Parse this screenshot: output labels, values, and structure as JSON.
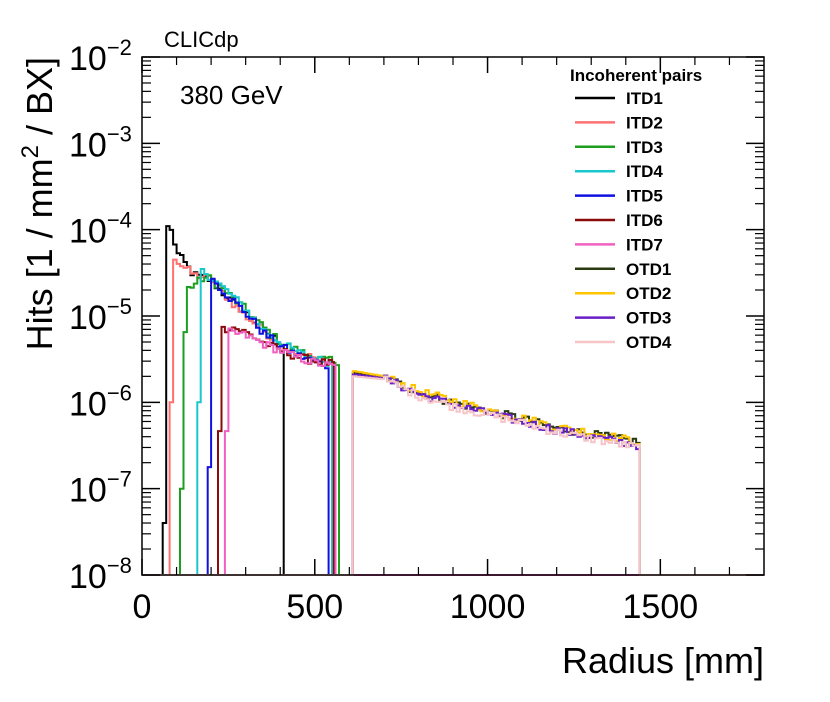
{
  "chart_data": {
    "type": "line",
    "subtype": "step-histogram",
    "title": "",
    "xlabel": "Radius [mm]",
    "ylabel": {
      "pre": "Hits [1 / mm",
      "sup": "2",
      "post": " / BX]"
    },
    "xlim": [
      0,
      1800
    ],
    "ylim": [
      1e-08,
      0.01
    ],
    "yscale": "log",
    "x_ticks": [
      0,
      500,
      1000,
      1500
    ],
    "x_tick_labels": [
      "0",
      "500",
      "1000",
      "1500"
    ],
    "y_ticks": [
      1e-08,
      1e-07,
      1e-06,
      1e-05,
      0.0001,
      0.001,
      0.01
    ],
    "y_tick_labels": [
      {
        "base": "10",
        "exp": "−8"
      },
      {
        "base": "10",
        "exp": "−7"
      },
      {
        "base": "10",
        "exp": "−6"
      },
      {
        "base": "10",
        "exp": "−5"
      },
      {
        "base": "10",
        "exp": "−4"
      },
      {
        "base": "10",
        "exp": "−3"
      },
      {
        "base": "10",
        "exp": "−2"
      }
    ],
    "annotations": {
      "collaboration": "CLICdp",
      "energy": "380 GeV"
    },
    "legend": {
      "title": "Incoherent pairs",
      "placement": "top-right"
    },
    "series": [
      {
        "name": "ITD1",
        "color": "#000000",
        "r_min": 60,
        "r_max": 410,
        "points": [
          [
            60,
            1e-08
          ],
          [
            70,
            1.6e-07
          ],
          [
            75,
            0.00011
          ],
          [
            90,
            9e-05
          ],
          [
            100,
            5.5e-05
          ],
          [
            150,
            3e-05
          ],
          [
            200,
            2.6e-05
          ],
          [
            250,
            1.6e-05
          ],
          [
            300,
            1.1e-05
          ],
          [
            350,
            7e-06
          ],
          [
            400,
            5e-06
          ]
        ]
      },
      {
        "name": "ITD2",
        "color": "#ff7070",
        "r_min": 80,
        "r_max": 550,
        "points": [
          [
            80,
            1e-08
          ],
          [
            85,
            1e-06
          ],
          [
            95,
            4.5e-05
          ],
          [
            150,
            3e-05
          ],
          [
            200,
            2.7e-05
          ],
          [
            250,
            1.6e-05
          ],
          [
            300,
            1e-05
          ],
          [
            350,
            7e-06
          ],
          [
            400,
            4.5e-06
          ],
          [
            450,
            3.8e-06
          ],
          [
            500,
            3.2e-06
          ],
          [
            545,
            2.8e-06
          ]
        ]
      },
      {
        "name": "ITD3",
        "color": "#1e9e1e",
        "r_min": 110,
        "r_max": 570,
        "points": [
          [
            110,
            1e-08
          ],
          [
            120,
            1e-06
          ],
          [
            128,
            2e-05
          ],
          [
            150,
            2.3e-05
          ],
          [
            180,
            2.8e-05
          ],
          [
            200,
            2.7e-05
          ],
          [
            250,
            1.8e-05
          ],
          [
            300,
            1.2e-05
          ],
          [
            350,
            7.5e-06
          ],
          [
            400,
            5e-06
          ],
          [
            450,
            4e-06
          ],
          [
            500,
            3.3e-06
          ],
          [
            550,
            3e-06
          ],
          [
            565,
            2.5e-06
          ]
        ]
      },
      {
        "name": "ITD4",
        "color": "#18c8cc",
        "r_min": 160,
        "r_max": 550,
        "points": [
          [
            160,
            1e-08
          ],
          [
            165,
            1e-06
          ],
          [
            175,
            3.5e-05
          ],
          [
            200,
            2.8e-05
          ],
          [
            250,
            1.9e-05
          ],
          [
            300,
            1.2e-05
          ],
          [
            350,
            7e-06
          ],
          [
            400,
            5e-06
          ],
          [
            450,
            3.8e-06
          ],
          [
            500,
            3.2e-06
          ],
          [
            545,
            2.9e-06
          ]
        ]
      },
      {
        "name": "ITD5",
        "color": "#1010e0",
        "r_min": 190,
        "r_max": 540,
        "points": [
          [
            190,
            1e-08
          ],
          [
            198,
            1e-06
          ],
          [
            205,
            2.7e-05
          ],
          [
            250,
            1.7e-05
          ],
          [
            300,
            1.1e-05
          ],
          [
            350,
            6.5e-06
          ],
          [
            400,
            4.5e-06
          ],
          [
            450,
            3.5e-06
          ],
          [
            500,
            3e-06
          ],
          [
            535,
            2.7e-06
          ]
        ]
      },
      {
        "name": "ITD6",
        "color": "#8b0a0a",
        "r_min": 220,
        "r_max": 555,
        "points": [
          [
            220,
            1e-08
          ],
          [
            226,
            1e-06
          ],
          [
            232,
            7e-06
          ],
          [
            260,
            7.5e-06
          ],
          [
            300,
            6.5e-06
          ],
          [
            350,
            5e-06
          ],
          [
            400,
            4e-06
          ],
          [
            450,
            3.4e-06
          ],
          [
            500,
            3e-06
          ],
          [
            550,
            2.8e-06
          ]
        ]
      },
      {
        "name": "ITD7",
        "color": "#f060c0",
        "r_min": 240,
        "r_max": 560,
        "points": [
          [
            240,
            1e-08
          ],
          [
            246,
            1e-06
          ],
          [
            252,
            6.5e-06
          ],
          [
            300,
            6e-06
          ],
          [
            350,
            4.8e-06
          ],
          [
            400,
            4e-06
          ],
          [
            450,
            3.3e-06
          ],
          [
            500,
            2.9e-06
          ],
          [
            550,
            2.6e-06
          ]
        ]
      },
      {
        "name": "OTD1",
        "color": "#2a3a10",
        "r_min": 610,
        "r_max": 1440,
        "points": [
          [
            610,
            1e-08
          ],
          [
            615,
            2.2e-06
          ],
          [
            700,
            2e-06
          ],
          [
            800,
            1.3e-06
          ],
          [
            900,
            1e-06
          ],
          [
            1000,
            8e-07
          ],
          [
            1100,
            6.5e-07
          ],
          [
            1200,
            5e-07
          ],
          [
            1300,
            4.3e-07
          ],
          [
            1435,
            3.5e-07
          ]
        ]
      },
      {
        "name": "OTD2",
        "color": "#ffc400",
        "r_min": 610,
        "r_max": 1440,
        "points": [
          [
            610,
            1e-08
          ],
          [
            615,
            2.3e-06
          ],
          [
            700,
            2e-06
          ],
          [
            800,
            1.35e-06
          ],
          [
            900,
            1.05e-06
          ],
          [
            1000,
            8.2e-07
          ],
          [
            1100,
            6.6e-07
          ],
          [
            1200,
            5.2e-07
          ],
          [
            1300,
            4.5e-07
          ],
          [
            1435,
            3.5e-07
          ]
        ]
      },
      {
        "name": "OTD3",
        "color": "#6a1ec8",
        "r_min": 610,
        "r_max": 1440,
        "points": [
          [
            610,
            1e-08
          ],
          [
            615,
            2.1e-06
          ],
          [
            700,
            1.9e-06
          ],
          [
            800,
            1.25e-06
          ],
          [
            900,
            9.5e-07
          ],
          [
            1000,
            7.5e-07
          ],
          [
            1100,
            6e-07
          ],
          [
            1200,
            4.8e-07
          ],
          [
            1300,
            4e-07
          ],
          [
            1435,
            3.2e-07
          ]
        ]
      },
      {
        "name": "OTD4",
        "color": "#f7c4c8",
        "r_min": 610,
        "r_max": 1440,
        "points": [
          [
            610,
            1e-08
          ],
          [
            615,
            2e-06
          ],
          [
            700,
            1.85e-06
          ],
          [
            800,
            1.2e-06
          ],
          [
            900,
            9e-07
          ],
          [
            1000,
            7.2e-07
          ],
          [
            1100,
            5.8e-07
          ],
          [
            1200,
            4.5e-07
          ],
          [
            1300,
            3.8e-07
          ],
          [
            1435,
            3e-07
          ]
        ]
      }
    ]
  }
}
